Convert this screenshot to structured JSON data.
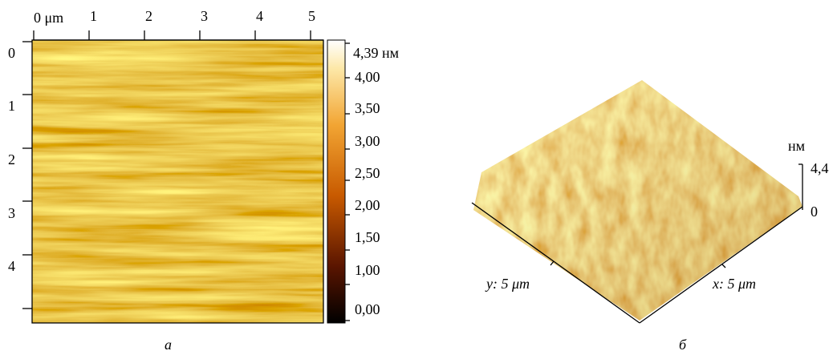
{
  "panel_a": {
    "x_ticks": [
      "0 μm",
      "1",
      "2",
      "3",
      "4",
      "5"
    ],
    "y_ticks": [
      "0",
      "1",
      "2",
      "3",
      "4"
    ],
    "colorbar_ticks": [
      "4,39 нм",
      "4,00",
      "3,50",
      "3,00",
      "2,50",
      "2,00",
      "1,50",
      "1,00",
      "0,00"
    ],
    "caption": "а"
  },
  "panel_b": {
    "y_axis_label": "y: 5 μm",
    "x_axis_label": "x: 5 μm",
    "z_unit": "нм",
    "z_max": "4,4",
    "z_min": "0",
    "caption": "б"
  }
}
